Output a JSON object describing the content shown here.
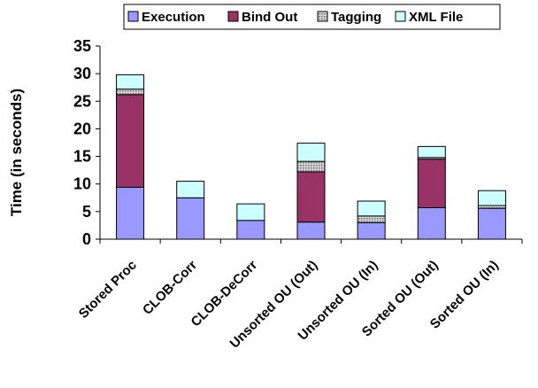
{
  "chart_data": {
    "type": "bar",
    "stacked": true,
    "categories": [
      "Stored Proc",
      "CLOB-Corr",
      "CLOB-DeCorr",
      "Unsorted OU (Out)",
      "Unsorted OU (In)",
      "Sorted OU (Out)",
      "Sorted OU (In)"
    ],
    "series": [
      {
        "name": "Execution",
        "color": "#9999ff",
        "pattern": "solid",
        "values": [
          9.4,
          7.5,
          3.4,
          3.1,
          3.0,
          5.7,
          5.6
        ]
      },
      {
        "name": "Bind Out",
        "color": "#993366",
        "pattern": "solid",
        "values": [
          16.8,
          0,
          0,
          9.1,
          0,
          8.8,
          0
        ]
      },
      {
        "name": "Tagging",
        "color": "#c0c0c0",
        "pattern": "dotted",
        "values": [
          1.0,
          0,
          0,
          1.9,
          1.2,
          0.3,
          0.5
        ]
      },
      {
        "name": "XML File",
        "color": "#ccffff",
        "pattern": "solid",
        "values": [
          2.6,
          3.0,
          3.0,
          3.3,
          2.7,
          2.0,
          2.7
        ]
      }
    ],
    "title": "",
    "xlabel": "",
    "ylabel": "Time (in seconds)",
    "ylim": [
      0,
      35
    ],
    "yticks": [
      "0",
      "5",
      "10",
      "15",
      "20",
      "25",
      "30",
      "35"
    ],
    "grid": false,
    "legend_position": "top"
  }
}
